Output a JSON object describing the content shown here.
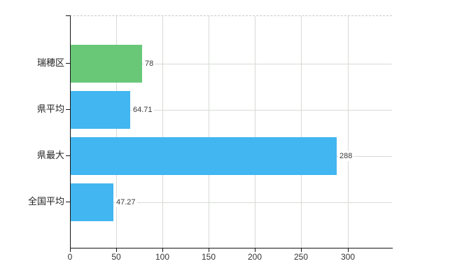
{
  "chart_data": {
    "type": "bar",
    "orientation": "horizontal",
    "categories": [
      "瑞穂区",
      "県平均",
      "県最大",
      "全国平均"
    ],
    "values": [
      78,
      64.71,
      288,
      47.27
    ],
    "value_labels": [
      "78",
      "64.71",
      "288",
      "47.27"
    ],
    "bar_colors": [
      "#68c878",
      "#41b6f0",
      "#41b6f0",
      "#41b6f0"
    ],
    "title": "",
    "xlabel": "",
    "ylabel": "",
    "xticks": [
      0,
      50,
      100,
      150,
      200,
      250,
      300
    ],
    "xlim": [
      0,
      348
    ],
    "grid": true,
    "gridline_color": "#d6dbd4",
    "axis_color": "#161616",
    "plot_top_border": "dashed",
    "legend": "none"
  }
}
